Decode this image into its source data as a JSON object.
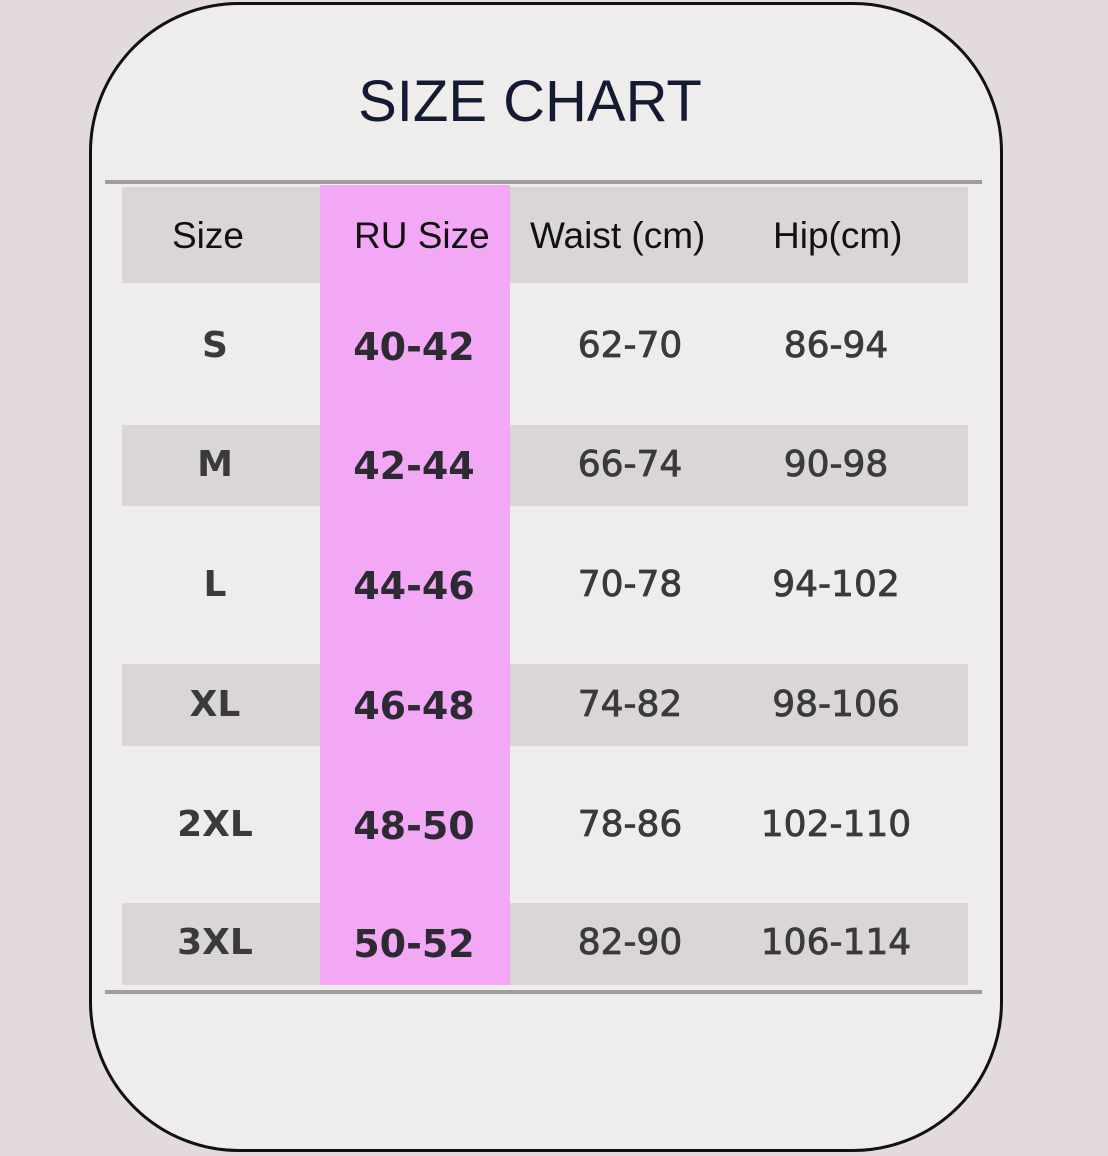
{
  "title": "SIZE CHART",
  "headers": [
    "Size",
    "RU Size",
    "Waist (cm)",
    "Hip(cm)"
  ],
  "highlight_color": "#f3a8f6",
  "rows": [
    {
      "size": "S",
      "ru": "40-42",
      "waist": "62-70",
      "hip": "86-94"
    },
    {
      "size": "M",
      "ru": "42-44",
      "waist": "66-74",
      "hip": "90-98"
    },
    {
      "size": "L",
      "ru": "44-46",
      "waist": "70-78",
      "hip": "94-102"
    },
    {
      "size": "XL",
      "ru": "46-48",
      "waist": "74-82",
      "hip": "98-106"
    },
    {
      "size": "2XL",
      "ru": "48-50",
      "waist": "78-86",
      "hip": "102-110"
    },
    {
      "size": "3XL",
      "ru": "50-52",
      "waist": "82-90",
      "hip": "106-114"
    }
  ]
}
